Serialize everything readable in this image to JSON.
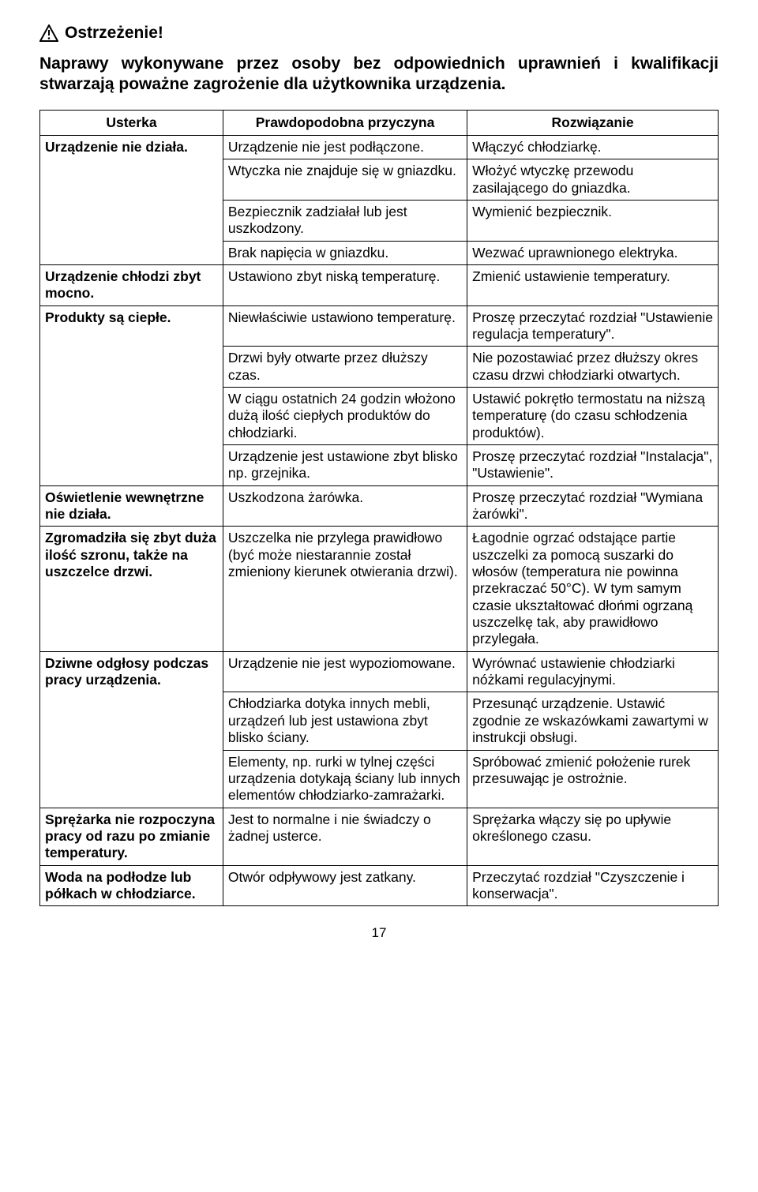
{
  "warning": {
    "title": "Ostrzeżenie!",
    "text": "Naprawy wykonywane przez osoby bez odpowiednich uprawnień i kwalifikacji stwarzają poważne zagrożenie dla użytkownika urządzenia."
  },
  "table": {
    "headers": {
      "fault": "Usterka",
      "cause": "Prawdopodobna przyczyna",
      "solution": "Rozwiązanie"
    },
    "rows": [
      {
        "fault": "Urządzenie nie działa.",
        "fault_rowspan": 4,
        "cause": "Urządzenie nie jest podłączone.",
        "solution": "Włączyć chłodziarkę."
      },
      {
        "cause": "Wtyczka nie znajduje się w gniazdku.",
        "solution": "Włożyć wtyczkę przewodu zasilającego do gniazdka."
      },
      {
        "cause": "Bezpiecznik zadziałał lub jest uszkodzony.",
        "solution": "Wymienić bezpiecznik."
      },
      {
        "cause": "Brak napięcia w gniazdku.",
        "solution": "Wezwać uprawnionego elektryka."
      },
      {
        "fault": "Urządzenie chłodzi zbyt mocno.",
        "fault_rowspan": 1,
        "cause": "Ustawiono zbyt niską temperaturę.",
        "solution": "Zmienić ustawienie temperatury."
      },
      {
        "fault": "Produkty są ciepłe.",
        "fault_rowspan": 4,
        "cause": "Niewłaściwie ustawiono temperaturę.",
        "solution": "Proszę przeczytać rozdział \"Ustawienie regulacja temperatury\"."
      },
      {
        "cause": "Drzwi były otwarte przez dłuższy czas.",
        "solution": "Nie pozostawiać przez dłuższy okres czasu drzwi chłodziarki otwartych."
      },
      {
        "cause": "W ciągu ostatnich 24 godzin włożono dużą ilość ciepłych produktów do chłodziarki.",
        "solution": "Ustawić pokrętło termostatu na niższą temperaturę (do czasu schłodzenia produktów)."
      },
      {
        "cause": "Urządzenie jest ustawione zbyt blisko np. grzejnika.",
        "solution": "Proszę przeczytać rozdział \"Instalacja\", \"Ustawienie\"."
      },
      {
        "fault": "Oświetlenie wewnętrzne nie działa.",
        "fault_rowspan": 1,
        "cause": "Uszkodzona żarówka.",
        "solution": "Proszę przeczytać rozdział \"Wymiana żarówki\"."
      },
      {
        "fault": "Zgromadziła się zbyt duża ilość szronu, także na uszczelce drzwi.",
        "fault_rowspan": 1,
        "cause": "Uszczelka nie przylega prawidłowo (być może niestarannie został zmieniony kierunek otwierania drzwi).",
        "solution": "Łagodnie ogrzać odstające partie uszczelki za pomocą suszarki do włosów (temperatura nie powinna przekraczać 50°C). W tym samym czasie ukształtować dłońmi ogrzaną uszczelkę tak, aby prawidłowo przylegała."
      },
      {
        "fault": "Dziwne odgłosy podczas pracy urządzenia.",
        "fault_rowspan": 3,
        "cause": "Urządzenie nie jest wypoziomowane.",
        "solution": "Wyrównać ustawienie chłodziarki nóżkami regulacyjnymi."
      },
      {
        "cause": "Chłodziarka dotyka innych mebli, urządzeń lub jest ustawiona zbyt blisko ściany.",
        "solution": "Przesunąć urządzenie. Ustawić zgodnie ze wskazówkami zawartymi w instrukcji obsługi."
      },
      {
        "cause": "Elementy, np. rurki w tylnej części urządzenia dotykają ściany lub innych elementów chłodziarko-zamrażarki.",
        "solution": "Spróbować zmienić położenie rurek przesuwając je ostrożnie."
      },
      {
        "fault": "Sprężarka nie rozpoczyna pracy od razu po zmianie temperatury.",
        "fault_rowspan": 1,
        "cause": "Jest to normalne i nie świadczy o żadnej usterce.",
        "solution": "Sprężarka włączy się po upływie określonego czasu."
      },
      {
        "fault": "Woda na podłodze lub półkach w chłodziarce.",
        "fault_rowspan": 1,
        "cause": "Otwór odpływowy jest zatkany.",
        "solution": "Przeczytać rozdział \"Czyszczenie i konserwacja\"."
      }
    ]
  },
  "page_number": "17"
}
